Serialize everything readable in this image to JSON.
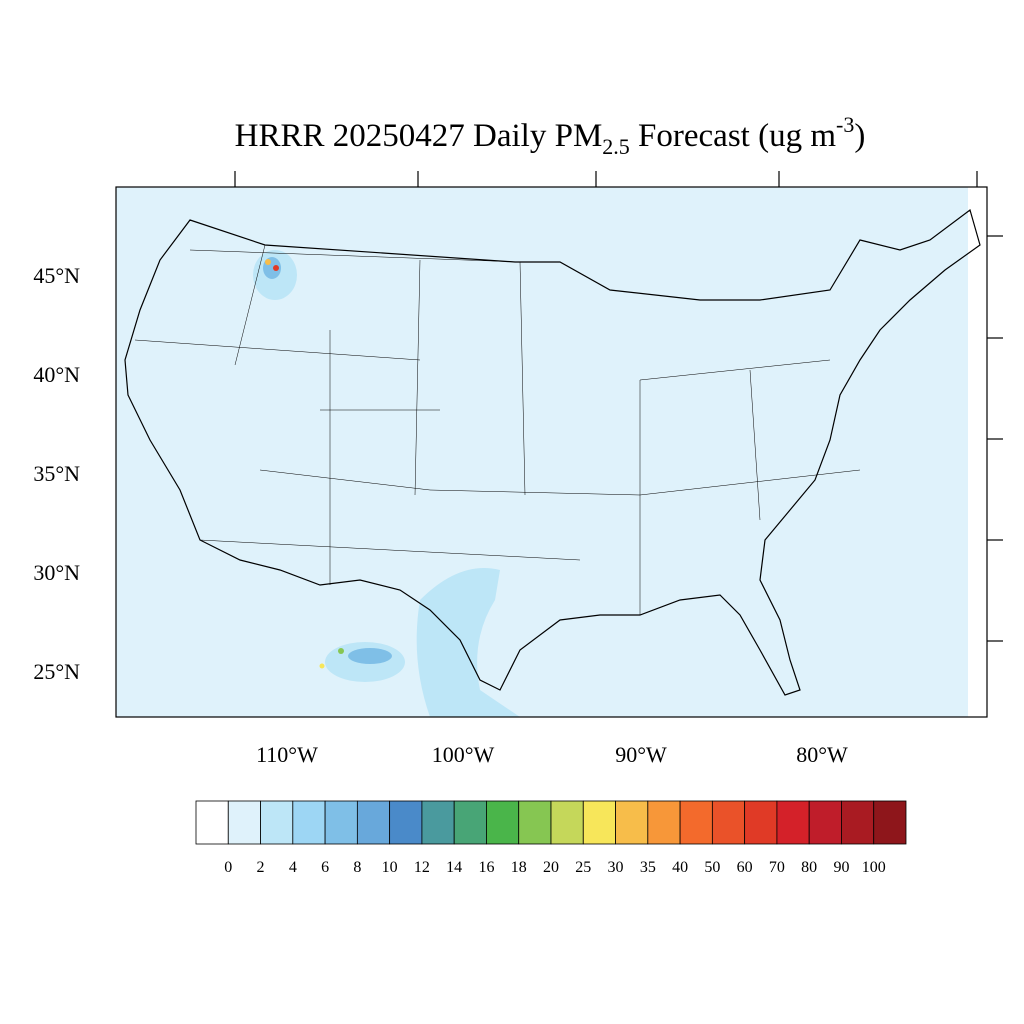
{
  "title": {
    "main": "HRRR 20250427 Daily PM",
    "sub": "2.5",
    "mid": " Forecast (ug m",
    "sup": "-3",
    "end": ")"
  },
  "map": {
    "lat_labels": [
      "45°N",
      "40°N",
      "35°N",
      "30°N",
      "25°N"
    ],
    "lon_labels": [
      "110°W",
      "100°W",
      "90°W",
      "80°W"
    ]
  },
  "colorbar": {
    "levels": [
      0,
      2,
      4,
      6,
      8,
      10,
      12,
      14,
      16,
      18,
      20,
      25,
      30,
      35,
      40,
      50,
      60,
      70,
      80,
      90,
      100
    ],
    "colors": [
      "#ffffff",
      "#dff2fb",
      "#bde6f7",
      "#9dd6f4",
      "#7fbfe7",
      "#68a8db",
      "#4a8ac9",
      "#4a9a9e",
      "#48a576",
      "#4ab54a",
      "#86c652",
      "#c5d75a",
      "#f7e65a",
      "#f7bd4a",
      "#f79739",
      "#f36a2c",
      "#ea5229",
      "#e03a26",
      "#d42129",
      "#bf1d2a",
      "#a91b22",
      "#8e161b"
    ]
  }
}
